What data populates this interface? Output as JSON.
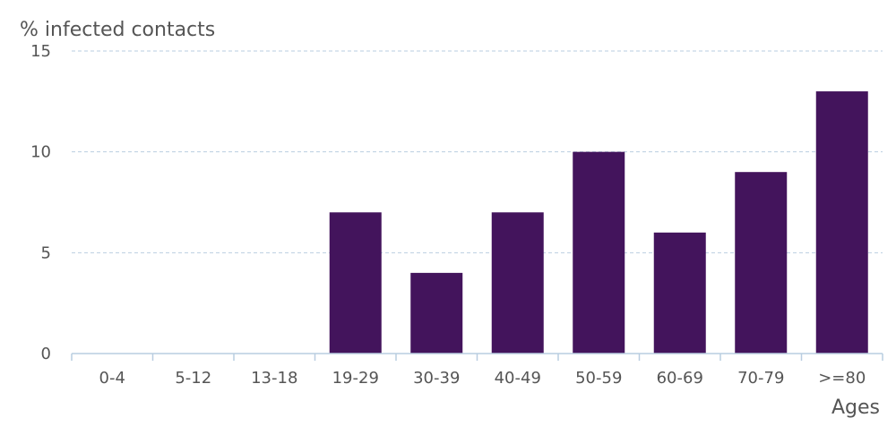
{
  "chart_data": {
    "type": "bar",
    "title": "",
    "ylabel": "% infected contacts",
    "xlabel": "Ages",
    "categories": [
      "0-4",
      "5-12",
      "13-18",
      "19-29",
      "30-39",
      "40-49",
      "50-59",
      "60-69",
      "70-79",
      ">=80"
    ],
    "values": [
      0,
      0,
      0,
      7,
      4,
      7,
      10,
      6,
      9,
      13
    ],
    "ylim": [
      0,
      15
    ],
    "yticks": [
      "0",
      "5",
      "10",
      "15"
    ],
    "grid": true,
    "legend": "none",
    "bar_color": "#43145c",
    "grid_color": "#b9cde0",
    "axis_color": "#b9cde0"
  }
}
